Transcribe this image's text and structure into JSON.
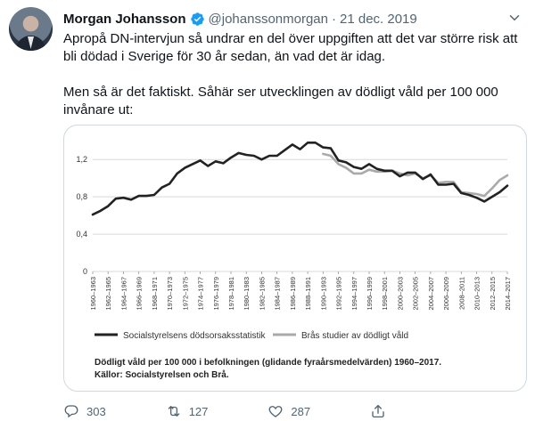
{
  "tweet": {
    "author_name": "Morgan Johansson",
    "handle": "@johanssonmorgan",
    "separator": "·",
    "date": "21 dec. 2019",
    "text_1": "Apropå DN-intervjun så undrar en del över uppgiften att det var större risk att bli dödad i Sverige för 30 år sedan, än vad det är idag.",
    "text_2": "Men så är det faktiskt. Såhär ser utvecklingen av dödligt våld per 100 000 invånare ut:"
  },
  "actions": {
    "reply_count": "303",
    "retweet_count": "127",
    "like_count": "287"
  },
  "icons": {
    "verified": "verified-badge-icon",
    "more": "chevron-down-icon",
    "reply": "reply-icon",
    "retweet": "retweet-icon",
    "like": "heart-icon",
    "share": "share-icon"
  },
  "colors": {
    "verified": "#1d9bf0",
    "text_secondary": "#536471",
    "series_1": "#222222",
    "series_2": "#aaaaaa",
    "grid": "#d9d9d9"
  },
  "chart_data": {
    "type": "line",
    "categories": [
      "1960–1963",
      "1962–1965",
      "1964–1967",
      "1966–1969",
      "1968–1971",
      "1970–1973",
      "1972–1975",
      "1974–1977",
      "1976–1979",
      "1978–1981",
      "1980–1983",
      "1982–1985",
      "1984–1987",
      "1986–1989",
      "1988–1991",
      "1990–1993",
      "1992–1995",
      "1994–1997",
      "1996–1999",
      "1998–2001",
      "2000–2003",
      "2002–2005",
      "2004–2007",
      "2006–2009",
      "2008–2011",
      "2010–2013",
      "2012–2015",
      "2014–2017"
    ],
    "y_ticks": [
      "0",
      "0,4",
      "0,8",
      "1,2"
    ],
    "ylim": [
      0,
      1.45
    ],
    "grid": true,
    "series": [
      {
        "name": "Socialstyrelsens dödsorsaksstatistik",
        "x": [
          "1960–1963",
          "1961–1964",
          "1962–1965",
          "1963–1966",
          "1964–1967",
          "1965–1968",
          "1966–1969",
          "1967–1970",
          "1968–1971",
          "1969–1972",
          "1970–1973",
          "1971–1974",
          "1972–1975",
          "1973–1976",
          "1974–1977",
          "1975–1978",
          "1976–1979",
          "1977–1980",
          "1978–1981",
          "1979–1982",
          "1980–1983",
          "1981–1984",
          "1982–1985",
          "1983–1986",
          "1984–1987",
          "1985–1988",
          "1986–1989",
          "1987–1990",
          "1988–1991",
          "1989–1992",
          "1990–1993",
          "1991–1994",
          "1992–1995",
          "1993–1996",
          "1994–1997",
          "1995–1998",
          "1996–1999",
          "1997–2000",
          "1998–2001",
          "1999–2002",
          "2000–2003",
          "2001–2004",
          "2002–2005",
          "2003–2006",
          "2004–2007",
          "2005–2008",
          "2006–2009",
          "2007–2010",
          "2008–2011",
          "2009–2012",
          "2010–2013",
          "2011–2014",
          "2012–2015",
          "2013–2016",
          "2014–2017"
        ],
        "values": [
          0.61,
          0.65,
          0.7,
          0.78,
          0.79,
          0.77,
          0.81,
          0.81,
          0.82,
          0.9,
          0.94,
          1.05,
          1.11,
          1.15,
          1.19,
          1.13,
          1.18,
          1.16,
          1.22,
          1.27,
          1.25,
          1.24,
          1.2,
          1.24,
          1.24,
          1.3,
          1.36,
          1.31,
          1.38,
          1.38,
          1.33,
          1.32,
          1.19,
          1.17,
          1.12,
          1.1,
          1.15,
          1.1,
          1.08,
          1.08,
          1.02,
          1.06,
          1.06,
          0.99,
          1.04,
          0.93,
          0.93,
          0.94,
          0.84,
          0.82,
          0.79,
          0.75,
          0.8,
          0.85,
          0.92
        ]
      },
      {
        "name": "Brås studier av dödligt våld",
        "x": [
          "1990–1993",
          "1991–1994",
          "1992–1995",
          "1993–1996",
          "1994–1997",
          "1995–1998",
          "1996–1999",
          "1997–2000",
          "1998–2001",
          "1999–2002",
          "2000–2003",
          "2001–2004",
          "2002–2005",
          "2003–2006",
          "2004–2007",
          "2005–2008",
          "2006–2009",
          "2007–2010",
          "2008–2011",
          "2009–2012",
          "2010–2013",
          "2011–2014",
          "2012–2015",
          "2013–2016",
          "2014–2017"
        ],
        "values": [
          1.26,
          1.24,
          1.15,
          1.11,
          1.05,
          1.05,
          1.09,
          1.07,
          1.07,
          1.08,
          1.05,
          1.03,
          1.05,
          1.0,
          1.03,
          0.95,
          0.96,
          0.96,
          0.85,
          0.84,
          0.83,
          0.81,
          0.89,
          0.98,
          1.03
        ]
      }
    ],
    "caption": "Dödligt våld per 100 000 i befolkningen (glidande fyraårsmedelvärden) 1960–2017.",
    "source": "Källor: Socialstyrelsen och Brå."
  }
}
